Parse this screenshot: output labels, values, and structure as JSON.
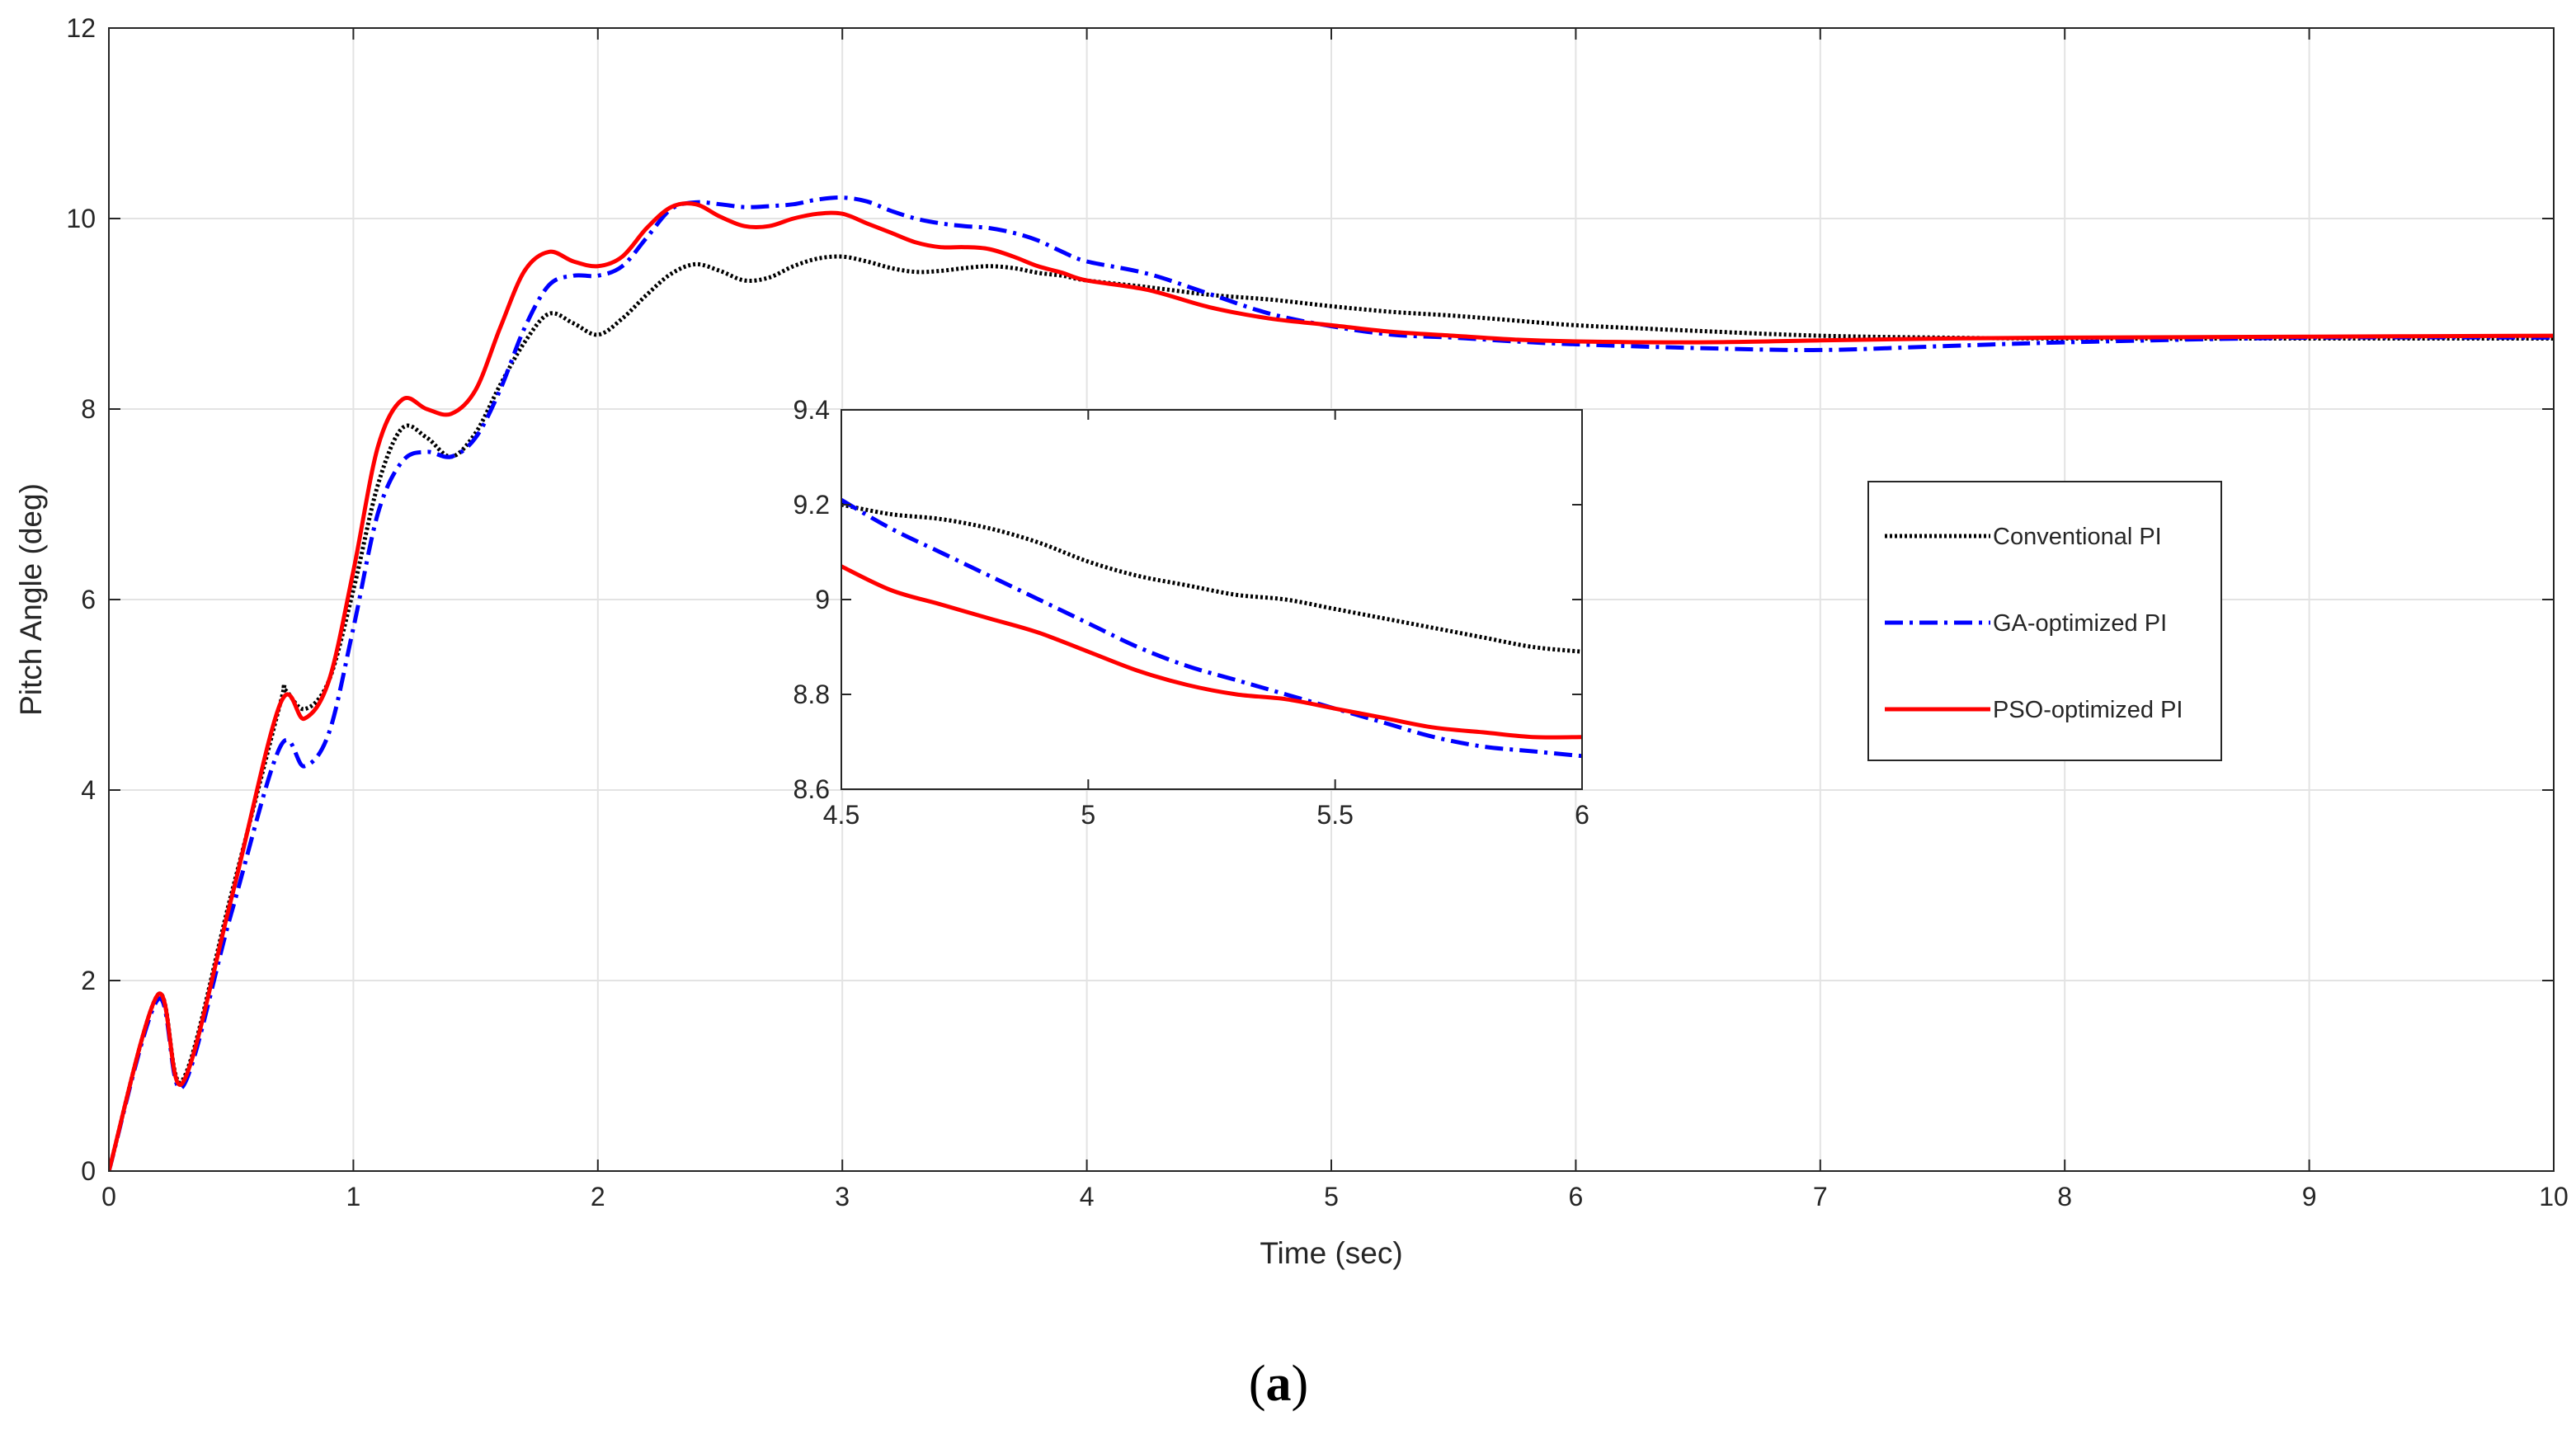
{
  "chart_data": [
    {
      "type": "line",
      "xlabel": "Time (sec)",
      "ylabel": "Pitch Angle (deg)",
      "xlim": [
        0,
        10
      ],
      "ylim": [
        0,
        12
      ],
      "xticks": [
        "0",
        "1",
        "2",
        "3",
        "4",
        "5",
        "6",
        "7",
        "8",
        "9",
        "10"
      ],
      "yticks": [
        "0",
        "2",
        "4",
        "6",
        "8",
        "10",
        "12"
      ],
      "grid": true,
      "legend_position": "right",
      "series": [
        {
          "name": "Conventional PI",
          "color": "#000000",
          "style": "dotted",
          "x": [
            0,
            0.2,
            0.3,
            0.5,
            0.7,
            0.72,
            0.8,
            0.9,
            1.0,
            1.1,
            1.2,
            1.3,
            1.4,
            1.5,
            1.6,
            1.7,
            1.8,
            1.9,
            2.0,
            2.1,
            2.2,
            2.3,
            2.4,
            2.5,
            2.6,
            2.7,
            2.8,
            2.9,
            3.0,
            3.1,
            3.2,
            3.3,
            3.4,
            3.5,
            3.6,
            3.7,
            3.8,
            3.9,
            4.0,
            4.25,
            4.5,
            4.75,
            5.0,
            5.25,
            5.5,
            5.75,
            6.0,
            6.5,
            7.0,
            7.5,
            8.0,
            9.0,
            10.0
          ],
          "y": [
            0,
            1.85,
            0.95,
            2.9,
            4.9,
            5.05,
            4.85,
            5.15,
            6.1,
            7.2,
            7.8,
            7.7,
            7.5,
            7.75,
            8.25,
            8.7,
            9.0,
            8.9,
            8.78,
            8.95,
            9.2,
            9.42,
            9.52,
            9.45,
            9.35,
            9.38,
            9.5,
            9.58,
            9.6,
            9.55,
            9.48,
            9.44,
            9.45,
            9.48,
            9.5,
            9.48,
            9.43,
            9.4,
            9.35,
            9.28,
            9.2,
            9.15,
            9.08,
            9.02,
            8.98,
            8.93,
            8.88,
            8.82,
            8.77,
            8.75,
            8.74,
            8.74,
            8.74
          ]
        },
        {
          "name": "GA-optimized PI",
          "color": "#0000FF",
          "style": "dashdot",
          "x": [
            0,
            0.2,
            0.3,
            0.5,
            0.7,
            0.8,
            0.9,
            1.0,
            1.1,
            1.2,
            1.3,
            1.4,
            1.5,
            1.6,
            1.7,
            1.8,
            1.9,
            2.0,
            2.1,
            2.2,
            2.3,
            2.4,
            2.5,
            2.6,
            2.7,
            2.8,
            2.9,
            3.0,
            3.1,
            3.2,
            3.3,
            3.4,
            3.5,
            3.6,
            3.7,
            3.8,
            3.9,
            4.0,
            4.25,
            4.5,
            4.75,
            5.0,
            5.25,
            5.5,
            5.75,
            6.0,
            6.5,
            7.0,
            7.5,
            8.0,
            9.0,
            10.0
          ],
          "y": [
            0,
            1.8,
            0.88,
            2.7,
            4.45,
            4.25,
            4.6,
            5.7,
            6.9,
            7.45,
            7.55,
            7.5,
            7.7,
            8.2,
            8.85,
            9.3,
            9.4,
            9.4,
            9.5,
            9.8,
            10.1,
            10.17,
            10.15,
            10.12,
            10.13,
            10.15,
            10.2,
            10.22,
            10.18,
            10.08,
            10.0,
            9.95,
            9.92,
            9.9,
            9.85,
            9.77,
            9.65,
            9.55,
            9.42,
            9.21,
            9.0,
            8.87,
            8.78,
            8.75,
            8.71,
            8.68,
            8.64,
            8.62,
            8.66,
            8.7,
            8.75,
            8.75
          ]
        },
        {
          "name": "PSO-optimized PI",
          "color": "#FF0000",
          "style": "solid",
          "x": [
            0,
            0.2,
            0.3,
            0.5,
            0.7,
            0.8,
            0.9,
            1.0,
            1.1,
            1.2,
            1.3,
            1.4,
            1.5,
            1.6,
            1.7,
            1.8,
            1.9,
            2.0,
            2.1,
            2.2,
            2.3,
            2.4,
            2.5,
            2.6,
            2.7,
            2.8,
            2.9,
            3.0,
            3.1,
            3.2,
            3.3,
            3.4,
            3.5,
            3.6,
            3.7,
            3.8,
            3.9,
            4.0,
            4.25,
            4.5,
            4.75,
            5.0,
            5.25,
            5.5,
            5.75,
            6.0,
            6.5,
            7.0,
            7.5,
            8.0,
            9.0,
            10.0
          ],
          "y": [
            0,
            1.85,
            0.92,
            2.85,
            4.9,
            4.75,
            5.15,
            6.3,
            7.6,
            8.1,
            8.0,
            7.95,
            8.2,
            8.85,
            9.45,
            9.65,
            9.55,
            9.5,
            9.6,
            9.9,
            10.12,
            10.15,
            10.02,
            9.92,
            9.92,
            10.0,
            10.05,
            10.05,
            9.95,
            9.85,
            9.75,
            9.7,
            9.7,
            9.68,
            9.6,
            9.5,
            9.43,
            9.35,
            9.25,
            9.07,
            8.95,
            8.88,
            8.81,
            8.77,
            8.73,
            8.71,
            8.7,
            8.72,
            8.74,
            8.75,
            8.76,
            8.77
          ]
        }
      ]
    },
    {
      "type": "line",
      "xlim": [
        4.5,
        6
      ],
      "ylim": [
        8.6,
        9.4
      ],
      "xticks": [
        "4.5",
        "5",
        "5.5",
        "6"
      ],
      "yticks": [
        "8.6",
        "8.8",
        "9",
        "9.2",
        "9.4"
      ],
      "grid": false,
      "series": [
        {
          "name": "Conventional PI",
          "color": "#000000",
          "style": "dotted",
          "x": [
            4.5,
            4.6,
            4.7,
            4.8,
            4.9,
            5.0,
            5.1,
            5.2,
            5.3,
            5.4,
            5.5,
            5.6,
            5.7,
            5.8,
            5.9,
            6.0
          ],
          "y": [
            9.2,
            9.18,
            9.17,
            9.15,
            9.12,
            9.08,
            9.05,
            9.03,
            9.01,
            9.0,
            8.98,
            8.96,
            8.94,
            8.92,
            8.9,
            8.89
          ]
        },
        {
          "name": "GA-optimized PI",
          "color": "#0000FF",
          "style": "dashdot",
          "x": [
            4.5,
            4.6,
            4.7,
            4.8,
            4.9,
            5.0,
            5.1,
            5.2,
            5.3,
            5.4,
            5.5,
            5.6,
            5.7,
            5.8,
            5.9,
            6.0
          ],
          "y": [
            9.21,
            9.15,
            9.1,
            9.05,
            9.0,
            8.95,
            8.9,
            8.86,
            8.83,
            8.8,
            8.77,
            8.74,
            8.71,
            8.69,
            8.68,
            8.67
          ]
        },
        {
          "name": "PSO-optimized PI",
          "color": "#FF0000",
          "style": "solid",
          "x": [
            4.5,
            4.6,
            4.7,
            4.8,
            4.9,
            5.0,
            5.1,
            5.2,
            5.3,
            5.4,
            5.5,
            5.6,
            5.7,
            5.8,
            5.9,
            6.0
          ],
          "y": [
            9.07,
            9.02,
            8.99,
            8.96,
            8.93,
            8.89,
            8.85,
            8.82,
            8.8,
            8.79,
            8.77,
            8.75,
            8.73,
            8.72,
            8.71,
            8.71
          ]
        }
      ]
    }
  ],
  "caption": {
    "open": "(",
    "letter": "a",
    "close": ")"
  }
}
